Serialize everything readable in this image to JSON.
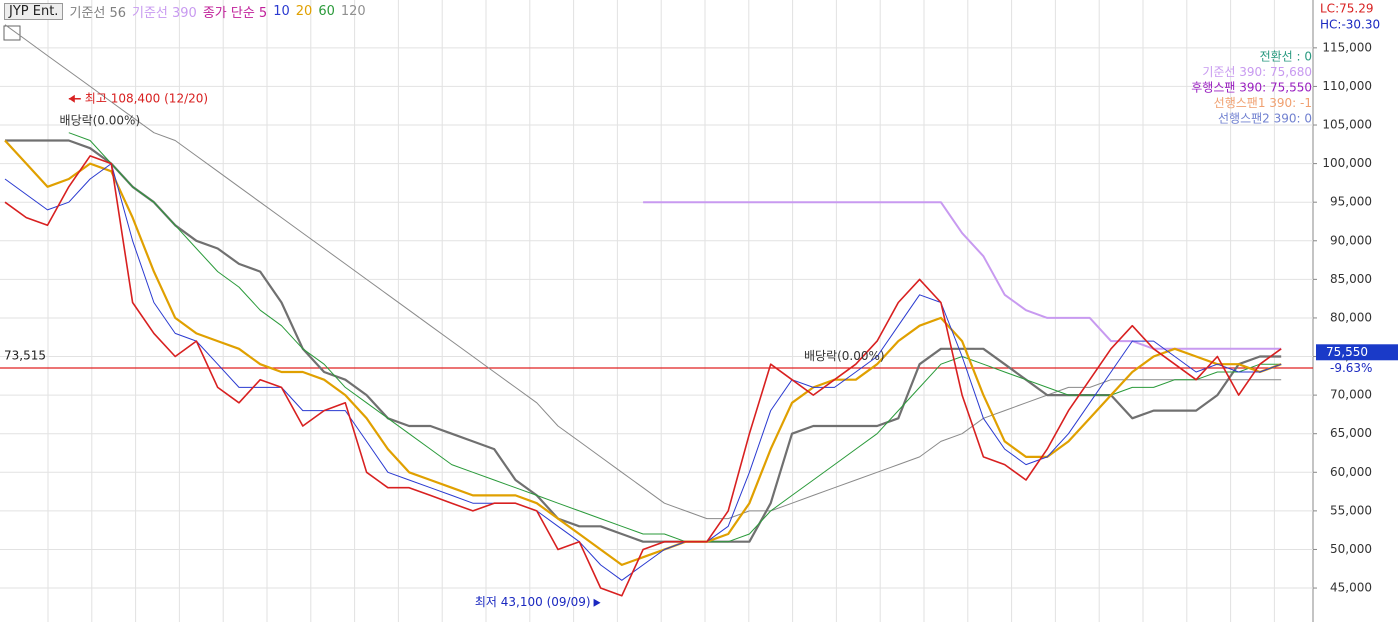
{
  "chart_data": {
    "type": "line",
    "title": "JYP Ent.",
    "ylim": [
      40600,
      121200
    ],
    "yticks": [
      {
        "value": 45000,
        "label": "45,000"
      },
      {
        "value": 50000,
        "label": "50,000"
      },
      {
        "value": 55000,
        "label": "55,000"
      },
      {
        "value": 60000,
        "label": "60,000"
      },
      {
        "value": 65000,
        "label": "65,000"
      },
      {
        "value": 70000,
        "label": "70,000"
      },
      {
        "value": 75000,
        "label": "75,000"
      },
      {
        "value": 80000,
        "label": "80,000"
      },
      {
        "value": 85000,
        "label": "85,000"
      },
      {
        "value": 90000,
        "label": "90,000"
      },
      {
        "value": 95000,
        "label": "95,000"
      },
      {
        "value": 100000,
        "label": "100,000"
      },
      {
        "value": 105000,
        "label": "105,000"
      },
      {
        "value": 110000,
        "label": "110,000"
      },
      {
        "value": 115000,
        "label": "115,000"
      }
    ],
    "grid": true,
    "legend": [
      {
        "label": "기준선 56",
        "color": "#808080"
      },
      {
        "label": "기준선 390",
        "color": "#c89af0"
      },
      {
        "label": "종가 단순 5",
        "color": "#c0209a"
      },
      {
        "label": "10",
        "color": "#2a3ad0"
      },
      {
        "label": "20",
        "color": "#e0a000"
      },
      {
        "label": "60",
        "color": "#2a9a3a"
      },
      {
        "label": "120",
        "color": "#909090"
      }
    ],
    "series": [
      {
        "name": "기준선 390",
        "color": "#c89af0",
        "width": 2,
        "values": [
          null,
          null,
          null,
          null,
          null,
          null,
          null,
          null,
          null,
          null,
          null,
          null,
          null,
          null,
          null,
          null,
          null,
          null,
          null,
          null,
          null,
          null,
          null,
          null,
          null,
          null,
          null,
          null,
          null,
          null,
          95000,
          95000,
          95000,
          95000,
          95000,
          95000,
          95000,
          95000,
          95000,
          95000,
          95000,
          95000,
          95000,
          95000,
          95000,
          91000,
          88000,
          83000,
          81000,
          80000,
          80000,
          80000,
          77000,
          77000,
          76000,
          76000,
          76000,
          76000,
          76000,
          76000,
          76000
        ]
      },
      {
        "name": "120",
        "color": "#8a8a8a",
        "width": 1,
        "values": [
          118000,
          116000,
          114000,
          112000,
          110000,
          108000,
          106000,
          104000,
          103000,
          101000,
          99000,
          97000,
          95000,
          93000,
          91000,
          89000,
          87000,
          85000,
          83000,
          81000,
          79000,
          77000,
          75000,
          73000,
          71000,
          69000,
          66000,
          64000,
          62000,
          60000,
          58000,
          56000,
          55000,
          54000,
          54000,
          55000,
          55000,
          56000,
          57000,
          58000,
          59000,
          60000,
          61000,
          62000,
          64000,
          65000,
          67000,
          68000,
          69000,
          70000,
          71000,
          71000,
          72000,
          72000,
          72000,
          72000,
          72000,
          72000,
          72000,
          72000,
          72000
        ]
      },
      {
        "name": "기준선 56",
        "color": "#707070",
        "width": 2.2,
        "values": [
          103000,
          103000,
          103000,
          103000,
          102000,
          100000,
          97000,
          95000,
          92000,
          90000,
          89000,
          87000,
          86000,
          82000,
          76000,
          73000,
          72000,
          70000,
          67000,
          66000,
          66000,
          65000,
          64000,
          63000,
          59000,
          57000,
          54000,
          53000,
          53000,
          52000,
          51000,
          51000,
          51000,
          51000,
          51000,
          51000,
          56000,
          65000,
          66000,
          66000,
          66000,
          66000,
          67000,
          74000,
          76000,
          76000,
          76000,
          74000,
          72000,
          70000,
          70000,
          70000,
          70000,
          67000,
          68000,
          68000,
          68000,
          70000,
          74000,
          75000,
          75000
        ]
      },
      {
        "name": "60",
        "color": "#2a9a3a",
        "width": 1,
        "values": [
          null,
          null,
          null,
          104000,
          103000,
          100000,
          97000,
          95000,
          92000,
          89000,
          86000,
          84000,
          81000,
          79000,
          76000,
          74000,
          71000,
          69000,
          67000,
          65000,
          63000,
          61000,
          60000,
          59000,
          58000,
          57000,
          56000,
          55000,
          54000,
          53000,
          52000,
          52000,
          51000,
          51000,
          51000,
          52000,
          55000,
          57000,
          59000,
          61000,
          63000,
          65000,
          68000,
          71000,
          74000,
          75000,
          74000,
          73000,
          72000,
          71000,
          70000,
          70000,
          70000,
          71000,
          71000,
          72000,
          72000,
          73000,
          73000,
          74000,
          74000
        ]
      },
      {
        "name": "20",
        "color": "#e0a000",
        "width": 2.2,
        "values": [
          103000,
          100000,
          97000,
          98000,
          100000,
          99000,
          93000,
          86000,
          80000,
          78000,
          77000,
          76000,
          74000,
          73000,
          73000,
          72000,
          70000,
          67000,
          63000,
          60000,
          59000,
          58000,
          57000,
          57000,
          57000,
          56000,
          54000,
          52000,
          50000,
          48000,
          49000,
          50000,
          51000,
          51000,
          52000,
          56000,
          63000,
          69000,
          71000,
          72000,
          72000,
          74000,
          77000,
          79000,
          80000,
          77000,
          70000,
          64000,
          62000,
          62000,
          64000,
          67000,
          70000,
          73000,
          75000,
          76000,
          75000,
          74000,
          74000,
          73000,
          74000
        ]
      },
      {
        "name": "10",
        "color": "#2a3ad0",
        "width": 1,
        "values": [
          98000,
          96000,
          94000,
          95000,
          98000,
          100000,
          90000,
          82000,
          78000,
          77000,
          74000,
          71000,
          71000,
          71000,
          68000,
          68000,
          68000,
          64000,
          60000,
          59000,
          58000,
          57000,
          56000,
          56000,
          56000,
          55000,
          53000,
          51000,
          48000,
          46000,
          48000,
          50000,
          51000,
          51000,
          53000,
          60000,
          68000,
          72000,
          71000,
          71000,
          73000,
          75000,
          79000,
          83000,
          82000,
          75000,
          67000,
          63000,
          61000,
          62000,
          65000,
          69000,
          73000,
          77000,
          77000,
          75000,
          73000,
          74000,
          73000,
          73000,
          74000
        ]
      },
      {
        "name": "JYP Ent.",
        "color": "#d82020",
        "width": 1.6,
        "values": [
          95000,
          93000,
          92000,
          97000,
          101000,
          100000,
          82000,
          78000,
          75000,
          77000,
          71000,
          69000,
          72000,
          71000,
          66000,
          68000,
          69000,
          60000,
          58000,
          58000,
          57000,
          56000,
          55000,
          56000,
          56000,
          55000,
          50000,
          51000,
          45000,
          44000,
          50000,
          51000,
          51000,
          51000,
          55000,
          65000,
          74000,
          72000,
          70000,
          72000,
          74000,
          77000,
          82000,
          85000,
          82000,
          70000,
          62000,
          61000,
          59000,
          63000,
          68000,
          72000,
          76000,
          79000,
          76000,
          74000,
          72000,
          75000,
          70000,
          74000,
          76000
        ]
      }
    ],
    "ref_line": {
      "value": 73515,
      "label": "73,515",
      "color": "#e02020"
    },
    "last_price": {
      "value": 75550,
      "label": "75,550"
    },
    "change_label": "-9.63%",
    "lc_label": "LC:75.29",
    "hc_label": "HC:-30.30",
    "annotations": {
      "high": {
        "label": "최고 108,400 (12/20)",
        "value": 108400,
        "index": 3
      },
      "low": {
        "label": "최저 43,100 (09/09)",
        "value": 43100,
        "index": 28
      },
      "dividend": [
        {
          "label": "배당락(0.00%)",
          "value": 105500,
          "index": 2
        },
        {
          "label": "배당락(0.00%)",
          "value": 75000,
          "index": 37
        }
      ]
    },
    "ichimoku_labels": [
      {
        "label": "전환선 : 0",
        "color": "#2a9a80"
      },
      {
        "label": "기준선 390: 75,680",
        "color": "#c89af0"
      },
      {
        "label": "후행스팬 390: 75,550",
        "color": "#9a20c0"
      },
      {
        "label": "선행스팬1 390: -1",
        "color": "#f0a070"
      },
      {
        "label": "선행스팬2 390: 0",
        "color": "#7080d0"
      }
    ]
  }
}
